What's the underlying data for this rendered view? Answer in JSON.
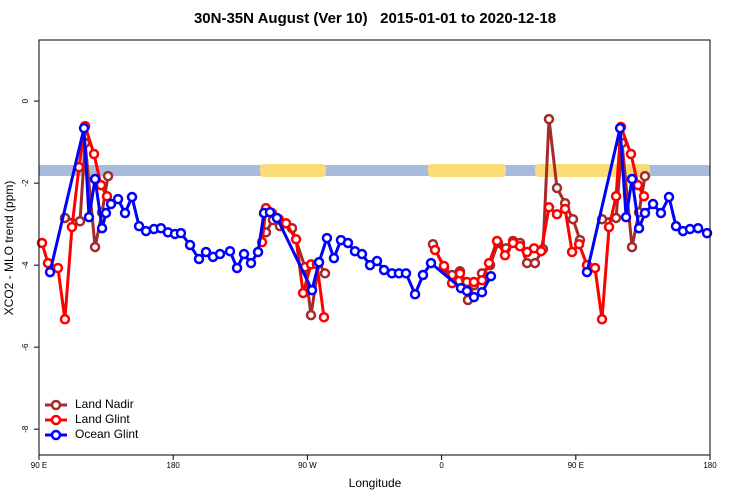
{
  "chart_data": {
    "type": "line",
    "title": "30N-35N August (Ver 10)   2015-01-01 to 2020-12-18",
    "x_label": "Longitude",
    "y_label": "XCO2 - MLO trend (ppm)",
    "xlim": [
      90,
      540
    ],
    "xticks": [
      {
        "value": 90,
        "label": "90 E"
      },
      180,
      {
        "value": 270,
        "label": "90 W"
      },
      {
        "value": 360,
        "label": "0"
      },
      {
        "value": 450,
        "label": "90 E"
      },
      {
        "value": 540,
        "label": "180"
      }
    ],
    "ylim": [
      -8.63,
      1.49
    ],
    "yticks": [
      0,
      -2,
      -4,
      -6,
      -8
    ],
    "legend": "bottom-left",
    "series": [
      {
        "name": "Land Nadir",
        "color": "#a52a2a",
        "x": [
          107.4,
          117.5,
          120.9,
          127.6,
          132.3,
          136.3,
          null,
          242.2,
          246.9,
          251.6,
          259.7,
          268.4,
          272.4,
          277.8,
          281.8,
          null,
          354.2,
          361.6,
          367.0,
          372.3,
          377.7,
          381.7,
          387.1,
          392.5,
          397.8,
          403.2,
          407.9,
          412.6,
          417.3,
          422.6,
          428.0,
          432.0,
          437.4,
          442.8,
          448.1,
          452.8,
          null,
          467.6,
          477.0,
          481.0,
          487.7,
          492.4,
          496.4
        ],
        "values": [
          -2.85,
          -2.93,
          -1.02,
          -3.56,
          -2.71,
          -1.83,
          null,
          -3.2,
          -2.9,
          -3.05,
          -3.1,
          -4.05,
          -5.22,
          -3.93,
          -4.2,
          null,
          -3.49,
          -4.07,
          -4.24,
          -4.15,
          -4.85,
          -4.49,
          -4.2,
          -4.0,
          -3.46,
          -3.59,
          -3.41,
          -3.46,
          -3.95,
          -3.95,
          -3.61,
          -0.44,
          -2.12,
          -2.49,
          -2.88,
          -3.39,
          null,
          -2.88,
          -2.85,
          -1.02,
          -3.56,
          -2.71,
          -1.83
        ]
      },
      {
        "name": "Land Glint",
        "color": "#ff0000",
        "x": [
          92.0,
          96.0,
          102.7,
          107.4,
          112.1,
          116.8,
          120.9,
          126.9,
          131.6,
          135.6,
          null,
          239.6,
          242.2,
          246.2,
          250.9,
          255.7,
          262.4,
          267.1,
          272.4,
          276.4,
          281.1,
          null,
          355.6,
          361.6,
          367.0,
          372.3,
          377.0,
          381.7,
          387.1,
          391.8,
          397.2,
          402.5,
          407.9,
          412.6,
          417.3,
          422.0,
          426.7,
          432.0,
          437.4,
          442.8,
          447.5,
          452.2,
          457.5,
          462.9,
          467.6,
          472.3,
          477.0,
          480.3,
          487.0,
          491.7,
          495.7
        ],
        "values": [
          -3.46,
          -3.95,
          -4.07,
          -5.32,
          -3.07,
          -1.61,
          -0.61,
          -1.29,
          -2.05,
          -2.32,
          null,
          -3.44,
          -2.61,
          -2.73,
          -2.88,
          -2.98,
          -3.37,
          -4.68,
          -3.98,
          -3.98,
          -5.27,
          null,
          -3.63,
          -4.02,
          -4.44,
          -4.2,
          -4.41,
          -4.41,
          -4.37,
          -3.95,
          -3.41,
          -3.76,
          -3.46,
          -3.54,
          -3.68,
          -3.59,
          -3.66,
          -2.59,
          -2.76,
          -2.63,
          -3.68,
          -3.49,
          -4.0,
          -4.07,
          -5.32,
          -3.07,
          -2.32,
          -0.63,
          -1.29,
          -2.05,
          -2.32
        ]
      },
      {
        "name": "Ocean Glint",
        "color": "#0000ff",
        "x": [
          97.4,
          120.2,
          123.5,
          127.6,
          132.3,
          134.9,
          138.3,
          143.0,
          147.7,
          152.4,
          157.1,
          161.8,
          167.1,
          171.8,
          176.5,
          181.2,
          185.2,
          191.3,
          197.3,
          202.0,
          206.7,
          211.4,
          218.1,
          222.8,
          227.5,
          232.2,
          236.9,
          240.9,
          244.9,
          249.6,
          273.1,
          277.8,
          283.1,
          287.8,
          292.5,
          297.2,
          301.9,
          306.6,
          312.0,
          316.7,
          321.4,
          326.7,
          331.4,
          336.1,
          342.2,
          347.5,
          352.9,
          373.0,
          377.0,
          381.7,
          387.1,
          393.1,
          null,
          457.5,
          479.7,
          483.7,
          487.7,
          492.4,
          496.4,
          501.8,
          507.1,
          512.5,
          517.2,
          521.9,
          526.6,
          532.0,
          538.0
        ],
        "values": [
          -4.17,
          -0.66,
          -2.83,
          -1.9,
          -3.1,
          -2.73,
          -2.51,
          -2.39,
          -2.73,
          -2.34,
          -3.05,
          -3.17,
          -3.12,
          -3.1,
          -3.2,
          -3.24,
          -3.22,
          -3.51,
          -3.85,
          -3.68,
          -3.8,
          -3.73,
          -3.66,
          -4.07,
          -3.73,
          -3.95,
          -3.68,
          -2.73,
          -2.71,
          -2.85,
          -4.61,
          -3.93,
          -3.34,
          -3.83,
          -3.39,
          -3.46,
          -3.66,
          -3.73,
          -4.0,
          -3.9,
          -4.12,
          -4.2,
          -4.2,
          -4.2,
          -4.71,
          -4.24,
          -3.95,
          -4.56,
          -4.63,
          -4.78,
          -4.66,
          -4.27,
          null,
          -4.17,
          -0.66,
          -2.83,
          -1.9,
          -3.1,
          -2.73,
          -2.51,
          -2.73,
          -2.34,
          -3.05,
          -3.17,
          -3.12,
          -3.1,
          -3.22
        ]
      }
    ]
  }
}
